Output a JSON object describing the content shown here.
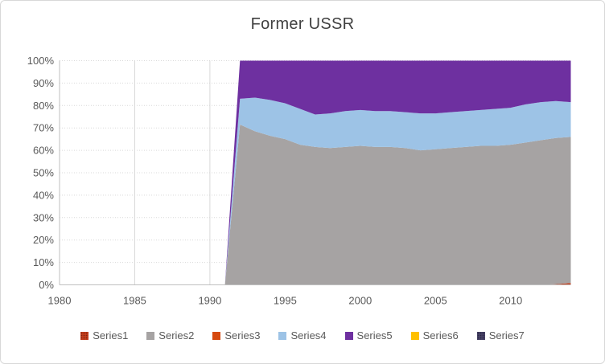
{
  "window": {
    "background": "#FFFFFF",
    "border_color": "#D8D8D8"
  },
  "chart_data": {
    "type": "area",
    "subtype": "stacked-100-percent",
    "title": "Former USSR",
    "title_color": "#404040",
    "x_range": [
      1980,
      2014
    ],
    "y_range": [
      0,
      100
    ],
    "x_ticks": [
      1980,
      1985,
      1990,
      1995,
      2000,
      2005,
      2010
    ],
    "y_ticks": [
      0,
      10,
      20,
      30,
      40,
      50,
      60,
      70,
      80,
      90,
      100
    ],
    "y_tick_suffix": "%",
    "grid": true,
    "legend_position": "bottom",
    "colors": {
      "gridline": "#D9D9D9",
      "axis": "#BFBFBF",
      "tick_label": "#595959",
      "legend_label": "#595959"
    },
    "x": [
      1991,
      1992,
      1993,
      1994,
      1995,
      1996,
      1997,
      1998,
      1999,
      2000,
      2001,
      2002,
      2003,
      2004,
      2005,
      2006,
      2007,
      2008,
      2009,
      2010,
      2011,
      2012,
      2013,
      2014
    ],
    "series": [
      {
        "name": "Series1",
        "color": "#C43E1C",
        "pattern": "dots",
        "pattern_color": "#7F2410",
        "values": [
          0,
          0,
          0,
          0,
          0,
          0,
          0,
          0,
          0,
          0,
          0,
          0,
          0,
          0,
          0,
          0,
          0,
          0,
          0,
          0,
          0,
          0,
          0.3,
          0.8
        ]
      },
      {
        "name": "Series2",
        "color": "#A6A3A3",
        "values": [
          0,
          71.5,
          68.5,
          66.5,
          65,
          62.5,
          61.5,
          61,
          61.5,
          62,
          61.5,
          61.5,
          61,
          60,
          60.5,
          61,
          61.5,
          62,
          62,
          62.5,
          63.5,
          64.5,
          65.2,
          65.2
        ]
      },
      {
        "name": "Series3",
        "color": "#D6490F",
        "values": [
          0,
          0,
          0,
          0,
          0,
          0,
          0,
          0,
          0,
          0,
          0,
          0,
          0,
          0,
          0,
          0,
          0,
          0,
          0,
          0,
          0,
          0,
          0,
          0
        ]
      },
      {
        "name": "Series4",
        "color": "#9DC3E6",
        "values": [
          0,
          11.5,
          15,
          16,
          16,
          16,
          14.5,
          15.5,
          16,
          16,
          16,
          16,
          16,
          16.5,
          16,
          16,
          16,
          16,
          16.5,
          16.5,
          17,
          17,
          16.5,
          15.5
        ]
      },
      {
        "name": "Series5",
        "color": "#6E30A0",
        "values": [
          0,
          17,
          16.5,
          17.5,
          19,
          21.5,
          24,
          23.5,
          22.5,
          22,
          22.5,
          22.5,
          23,
          23.5,
          23.5,
          23,
          22.5,
          22,
          21.5,
          21,
          19.5,
          18.5,
          18,
          18.5
        ]
      },
      {
        "name": "Series6",
        "color": "#FFC000",
        "values": [
          0,
          0,
          0,
          0,
          0,
          0,
          0,
          0,
          0,
          0,
          0,
          0,
          0,
          0,
          0,
          0,
          0,
          0,
          0,
          0,
          0,
          0,
          0,
          0
        ]
      },
      {
        "name": "Series7",
        "color": "#454064",
        "pattern": "dots",
        "pattern_color": "#2B2845",
        "values": [
          0,
          0,
          0,
          0,
          0,
          0,
          0,
          0,
          0,
          0,
          0,
          0,
          0,
          0,
          0,
          0,
          0,
          0,
          0,
          0,
          0,
          0,
          0,
          0
        ]
      }
    ]
  }
}
